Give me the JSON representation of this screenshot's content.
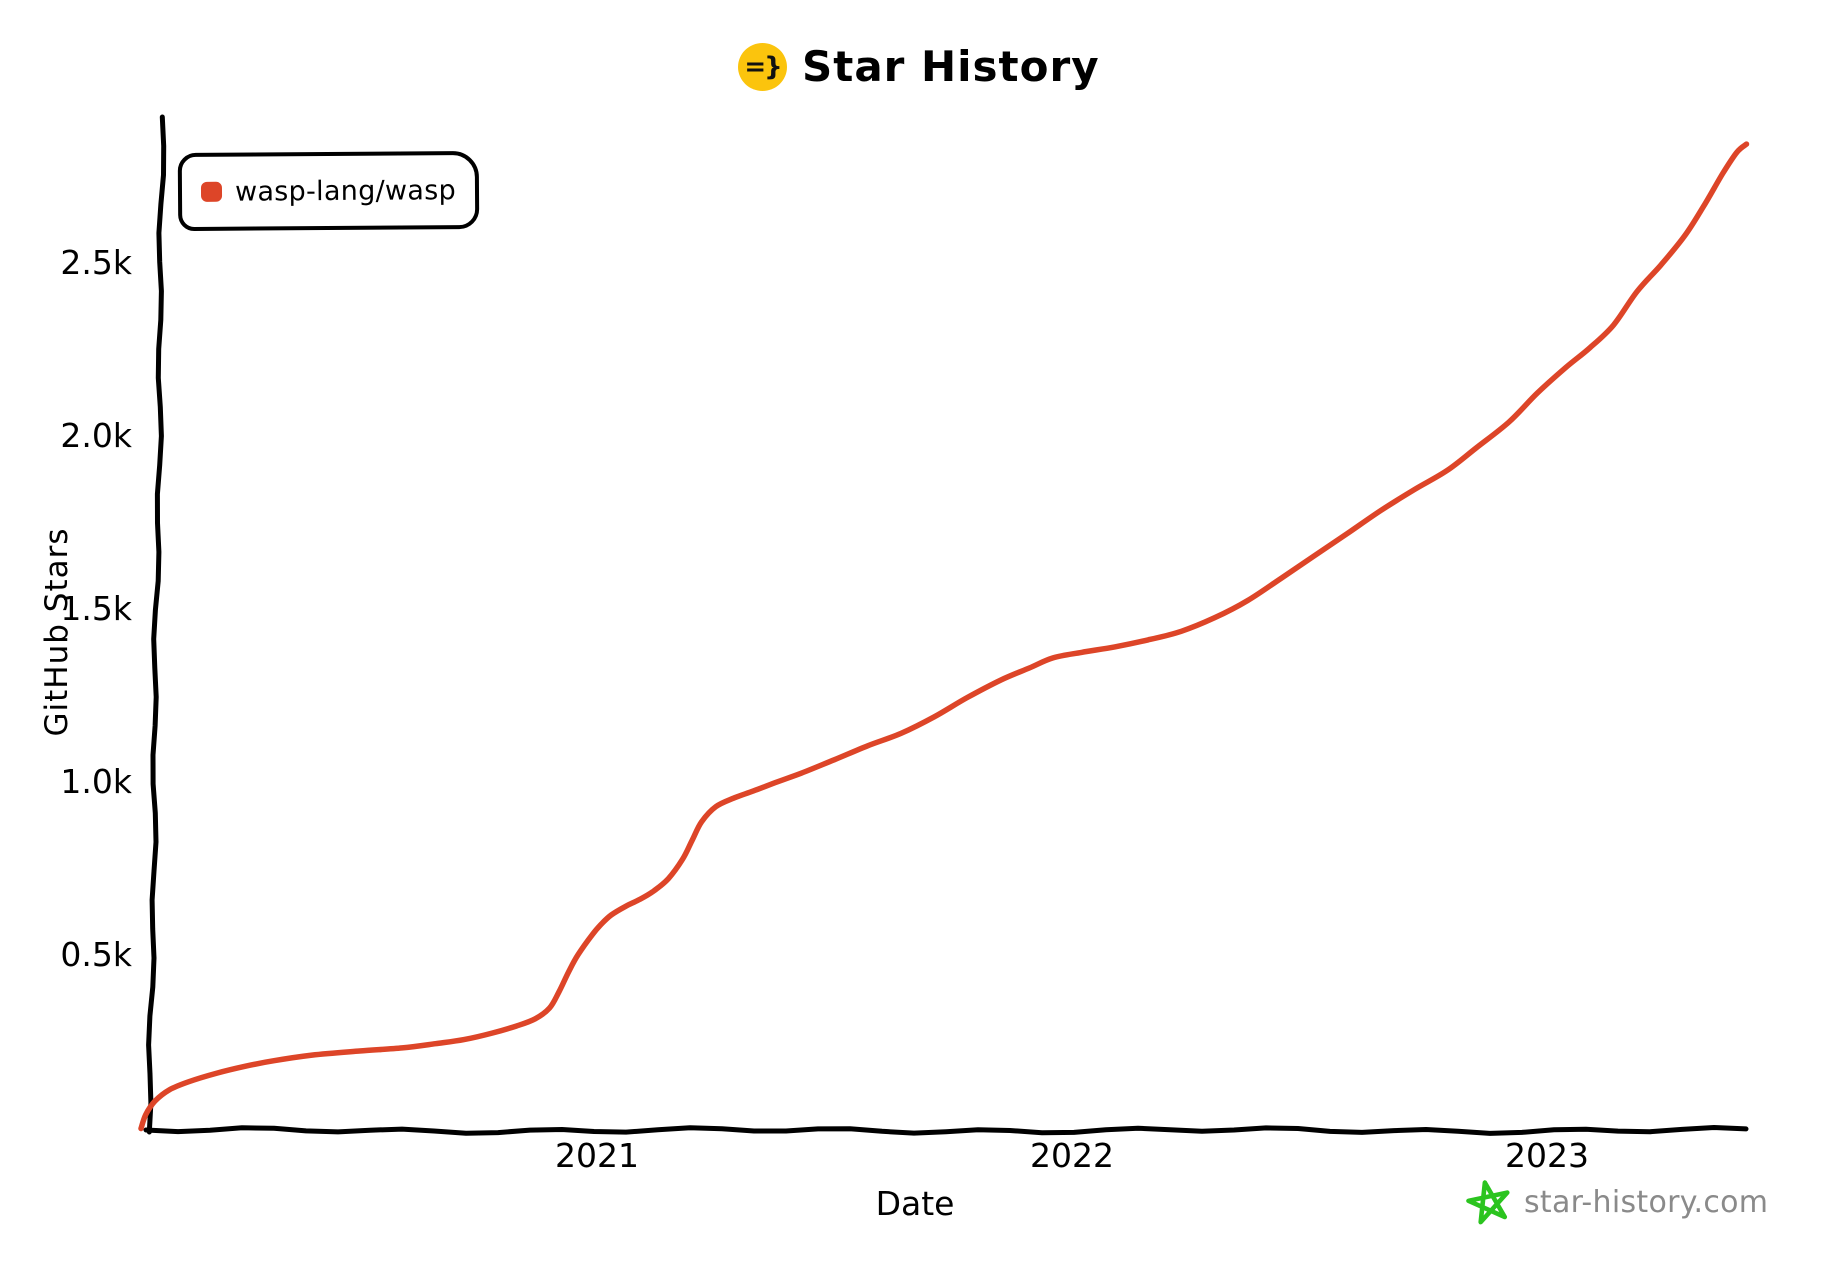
{
  "title": {
    "text": "Star History",
    "icon_glyph": "=}",
    "icon_color": "#fbc40d"
  },
  "legend": {
    "series_label": "wasp-lang/wasp"
  },
  "watermark": {
    "text": "star-history.com",
    "star_color": "#2bc41f",
    "text_color": "#8a8a8a"
  },
  "colors": {
    "axis": "#000000",
    "line": "#dd4528",
    "background": "#ffffff"
  },
  "chart_data": {
    "type": "line",
    "title": "Star History",
    "xlabel": "Date",
    "ylabel": "GitHub Stars",
    "grid": false,
    "legend_position": "top-left",
    "x_ticks": [
      {
        "label": "2021",
        "value": 2021
      },
      {
        "label": "2022",
        "value": 2022
      },
      {
        "label": "2023",
        "value": 2023
      }
    ],
    "y_ticks": [
      {
        "label": "0.5k",
        "value": 500
      },
      {
        "label": "1.0k",
        "value": 1000
      },
      {
        "label": "1.5k",
        "value": 1500
      },
      {
        "label": "2.0k",
        "value": 2000
      },
      {
        "label": "2.5k",
        "value": 2500
      }
    ],
    "x_range": [
      2020.04,
      2023.43
    ],
    "y_range": [
      0,
      2920
    ],
    "series": [
      {
        "name": "wasp-lang/wasp",
        "color": "#dd4528",
        "points": [
          [
            2020.04,
            0
          ],
          [
            2020.05,
            40
          ],
          [
            2020.07,
            80
          ],
          [
            2020.1,
            112
          ],
          [
            2020.14,
            135
          ],
          [
            2020.2,
            160
          ],
          [
            2020.26,
            180
          ],
          [
            2020.32,
            196
          ],
          [
            2020.4,
            212
          ],
          [
            2020.5,
            224
          ],
          [
            2020.59,
            233
          ],
          [
            2020.66,
            245
          ],
          [
            2020.72,
            257
          ],
          [
            2020.78,
            276
          ],
          [
            2020.83,
            296
          ],
          [
            2020.87,
            317
          ],
          [
            2020.9,
            348
          ],
          [
            2020.92,
            395
          ],
          [
            2020.94,
            452
          ],
          [
            2020.96,
            502
          ],
          [
            2020.99,
            560
          ],
          [
            2021.01,
            592
          ],
          [
            2021.03,
            617
          ],
          [
            2021.06,
            642
          ],
          [
            2021.09,
            662
          ],
          [
            2021.12,
            687
          ],
          [
            2021.15,
            722
          ],
          [
            2021.18,
            778
          ],
          [
            2021.2,
            832
          ],
          [
            2021.22,
            886
          ],
          [
            2021.25,
            930
          ],
          [
            2021.29,
            956
          ],
          [
            2021.33,
            976
          ],
          [
            2021.38,
            1002
          ],
          [
            2021.43,
            1027
          ],
          [
            2021.5,
            1066
          ],
          [
            2021.57,
            1106
          ],
          [
            2021.64,
            1142
          ],
          [
            2021.71,
            1190
          ],
          [
            2021.78,
            1246
          ],
          [
            2021.85,
            1296
          ],
          [
            2021.91,
            1331
          ],
          [
            2021.96,
            1360
          ],
          [
            2022.02,
            1376
          ],
          [
            2022.09,
            1392
          ],
          [
            2022.16,
            1412
          ],
          [
            2022.23,
            1437
          ],
          [
            2022.3,
            1476
          ],
          [
            2022.37,
            1526
          ],
          [
            2022.44,
            1590
          ],
          [
            2022.51,
            1655
          ],
          [
            2022.58,
            1720
          ],
          [
            2022.65,
            1786
          ],
          [
            2022.72,
            1846
          ],
          [
            2022.79,
            1902
          ],
          [
            2022.85,
            1966
          ],
          [
            2022.92,
            2042
          ],
          [
            2022.98,
            2126
          ],
          [
            2023.04,
            2200
          ],
          [
            2023.09,
            2256
          ],
          [
            2023.14,
            2322
          ],
          [
            2023.19,
            2420
          ],
          [
            2023.24,
            2496
          ],
          [
            2023.29,
            2580
          ],
          [
            2023.33,
            2666
          ],
          [
            2023.37,
            2760
          ],
          [
            2023.4,
            2822
          ],
          [
            2023.42,
            2845
          ]
        ]
      }
    ]
  }
}
